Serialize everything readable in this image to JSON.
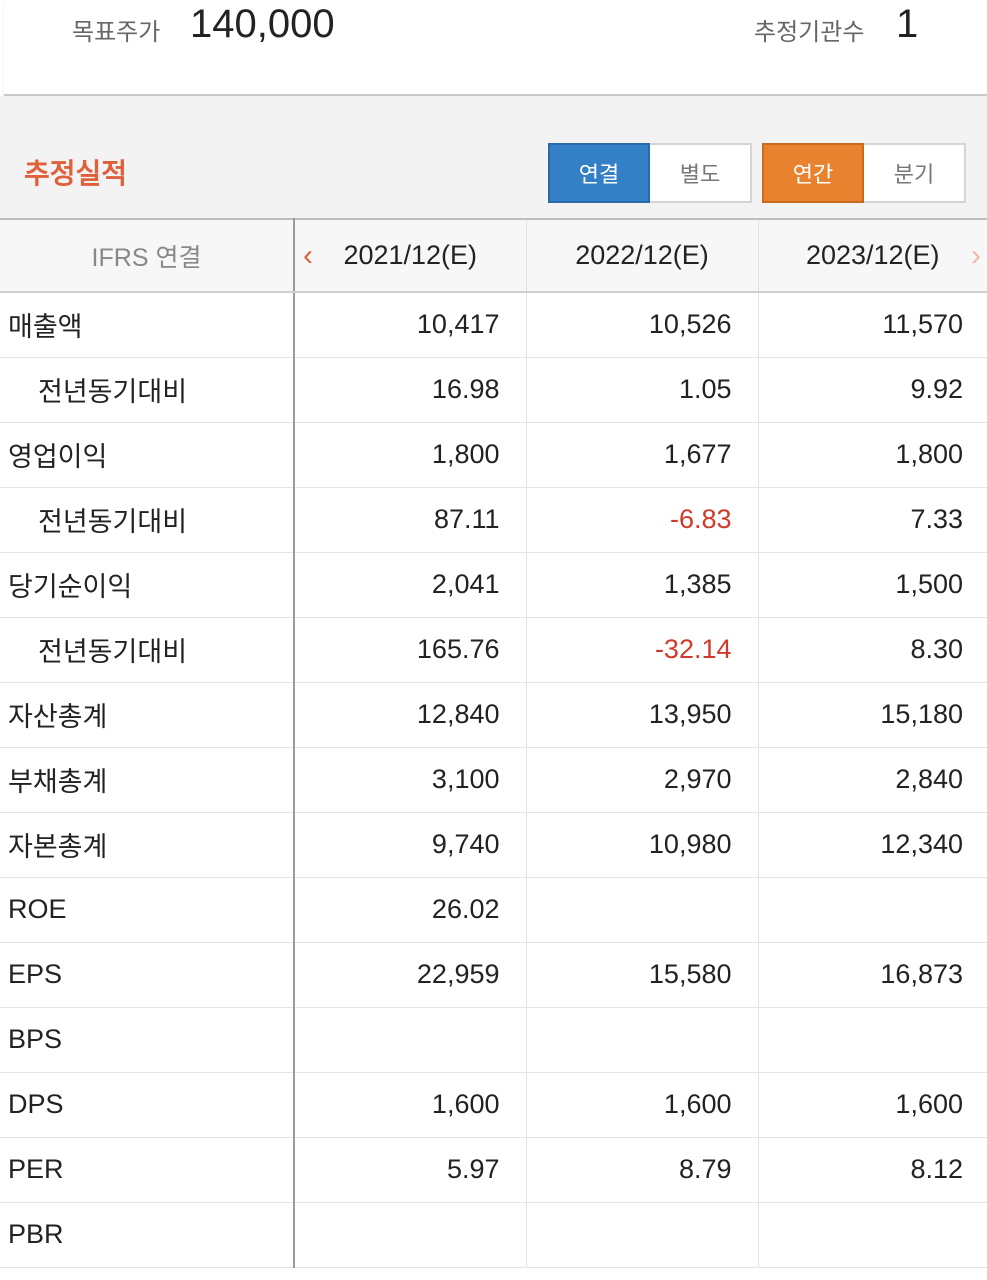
{
  "summary": {
    "target_price_label": "목표주가",
    "target_price_value": "140,000",
    "estimator_count_label": "추정기관수",
    "estimator_count_value": "1"
  },
  "section": {
    "title": "추정실적",
    "basis_toggle": [
      "연결",
      "별도"
    ],
    "basis_selected": "연결",
    "period_toggle": [
      "연간",
      "분기"
    ],
    "period_selected": "연간"
  },
  "colors": {
    "accent_red": "#e0603c",
    "blue_active": "#3480c7",
    "orange_active": "#e9822f",
    "negative": "#d03a2a"
  },
  "table": {
    "corner_label": "IFRS 연결",
    "prev_icon": "chevron-left-icon",
    "next_icon": "chevron-right-icon",
    "columns": [
      "2021/12(E)",
      "2022/12(E)",
      "2023/12(E)"
    ],
    "rows": [
      {
        "label": "매출액",
        "sub": false,
        "values": [
          "10,417",
          "10,526",
          "11,570"
        ]
      },
      {
        "label": "전년동기대비",
        "sub": true,
        "values": [
          "16.98",
          "1.05",
          "9.92"
        ]
      },
      {
        "label": "영업이익",
        "sub": false,
        "values": [
          "1,800",
          "1,677",
          "1,800"
        ]
      },
      {
        "label": "전년동기대비",
        "sub": true,
        "values": [
          "87.11",
          "-6.83",
          "7.33"
        ]
      },
      {
        "label": "당기순이익",
        "sub": false,
        "values": [
          "2,041",
          "1,385",
          "1,500"
        ]
      },
      {
        "label": "전년동기대비",
        "sub": true,
        "values": [
          "165.76",
          "-32.14",
          "8.30"
        ]
      },
      {
        "label": "자산총계",
        "sub": false,
        "values": [
          "12,840",
          "13,950",
          "15,180"
        ]
      },
      {
        "label": "부채총계",
        "sub": false,
        "values": [
          "3,100",
          "2,970",
          "2,840"
        ]
      },
      {
        "label": "자본총계",
        "sub": false,
        "values": [
          "9,740",
          "10,980",
          "12,340"
        ]
      },
      {
        "label": "ROE",
        "sub": false,
        "values": [
          "26.02",
          "",
          ""
        ]
      },
      {
        "label": "EPS",
        "sub": false,
        "values": [
          "22,959",
          "15,580",
          "16,873"
        ]
      },
      {
        "label": "BPS",
        "sub": false,
        "values": [
          "",
          "",
          ""
        ]
      },
      {
        "label": "DPS",
        "sub": false,
        "values": [
          "1,600",
          "1,600",
          "1,600"
        ]
      },
      {
        "label": "PER",
        "sub": false,
        "values": [
          "5.97",
          "8.79",
          "8.12"
        ]
      },
      {
        "label": "PBR",
        "sub": false,
        "values": [
          "",
          "",
          ""
        ]
      }
    ]
  }
}
